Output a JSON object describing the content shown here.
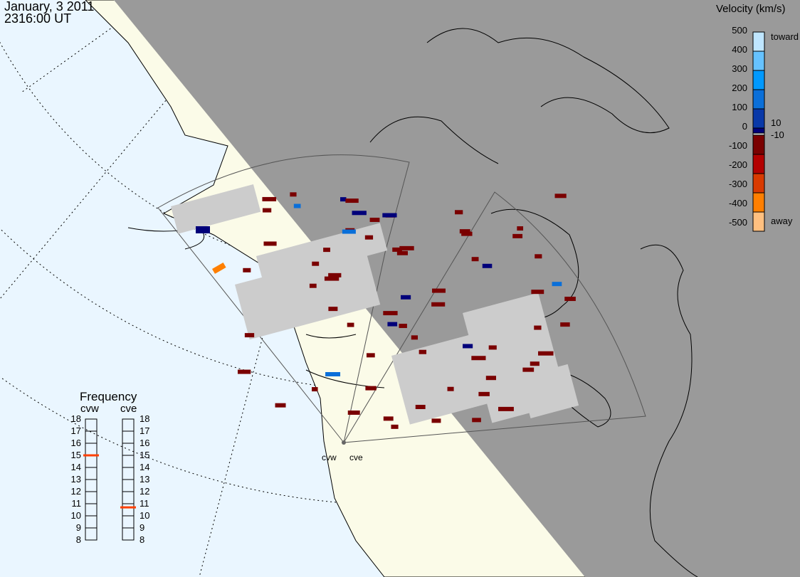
{
  "header": {
    "date": "January, 3 2011",
    "time": "2316:00 UT"
  },
  "colorbar": {
    "title": "Velocity (km/s)",
    "ticks": [
      "500",
      "400",
      "300",
      "200",
      "100",
      "0",
      "-100",
      "-200",
      "-300",
      "-400",
      "-500"
    ],
    "toward_label": "toward",
    "away_label": "away",
    "threshold_pos": "10",
    "threshold_neg": "-10",
    "colors": [
      "#bfe6ff",
      "#66c2ff",
      "#0099ff",
      "#0a6fd9",
      "#0838a8",
      "#00007a",
      "#cccccc",
      "#7a0000",
      "#b30000",
      "#d93a00",
      "#ff7f00",
      "#ffc080"
    ]
  },
  "frequency": {
    "title": "Frequency",
    "radars": [
      {
        "name": "cvw",
        "value_mhz": 15.0
      },
      {
        "name": "cve",
        "value_mhz": 10.7
      }
    ],
    "ticks": [
      "18",
      "17",
      "16",
      "15",
      "14",
      "13",
      "12",
      "11",
      "10",
      "9",
      "8"
    ],
    "marker_color": "#ff4000"
  },
  "map": {
    "radar_labels": [
      "cvw",
      "cve"
    ],
    "ocean_color": "#eaf6ff",
    "land_color": "#fbfbe8",
    "night_color": "#9a9a9a",
    "ground_scatter_color": "#cccccc"
  }
}
